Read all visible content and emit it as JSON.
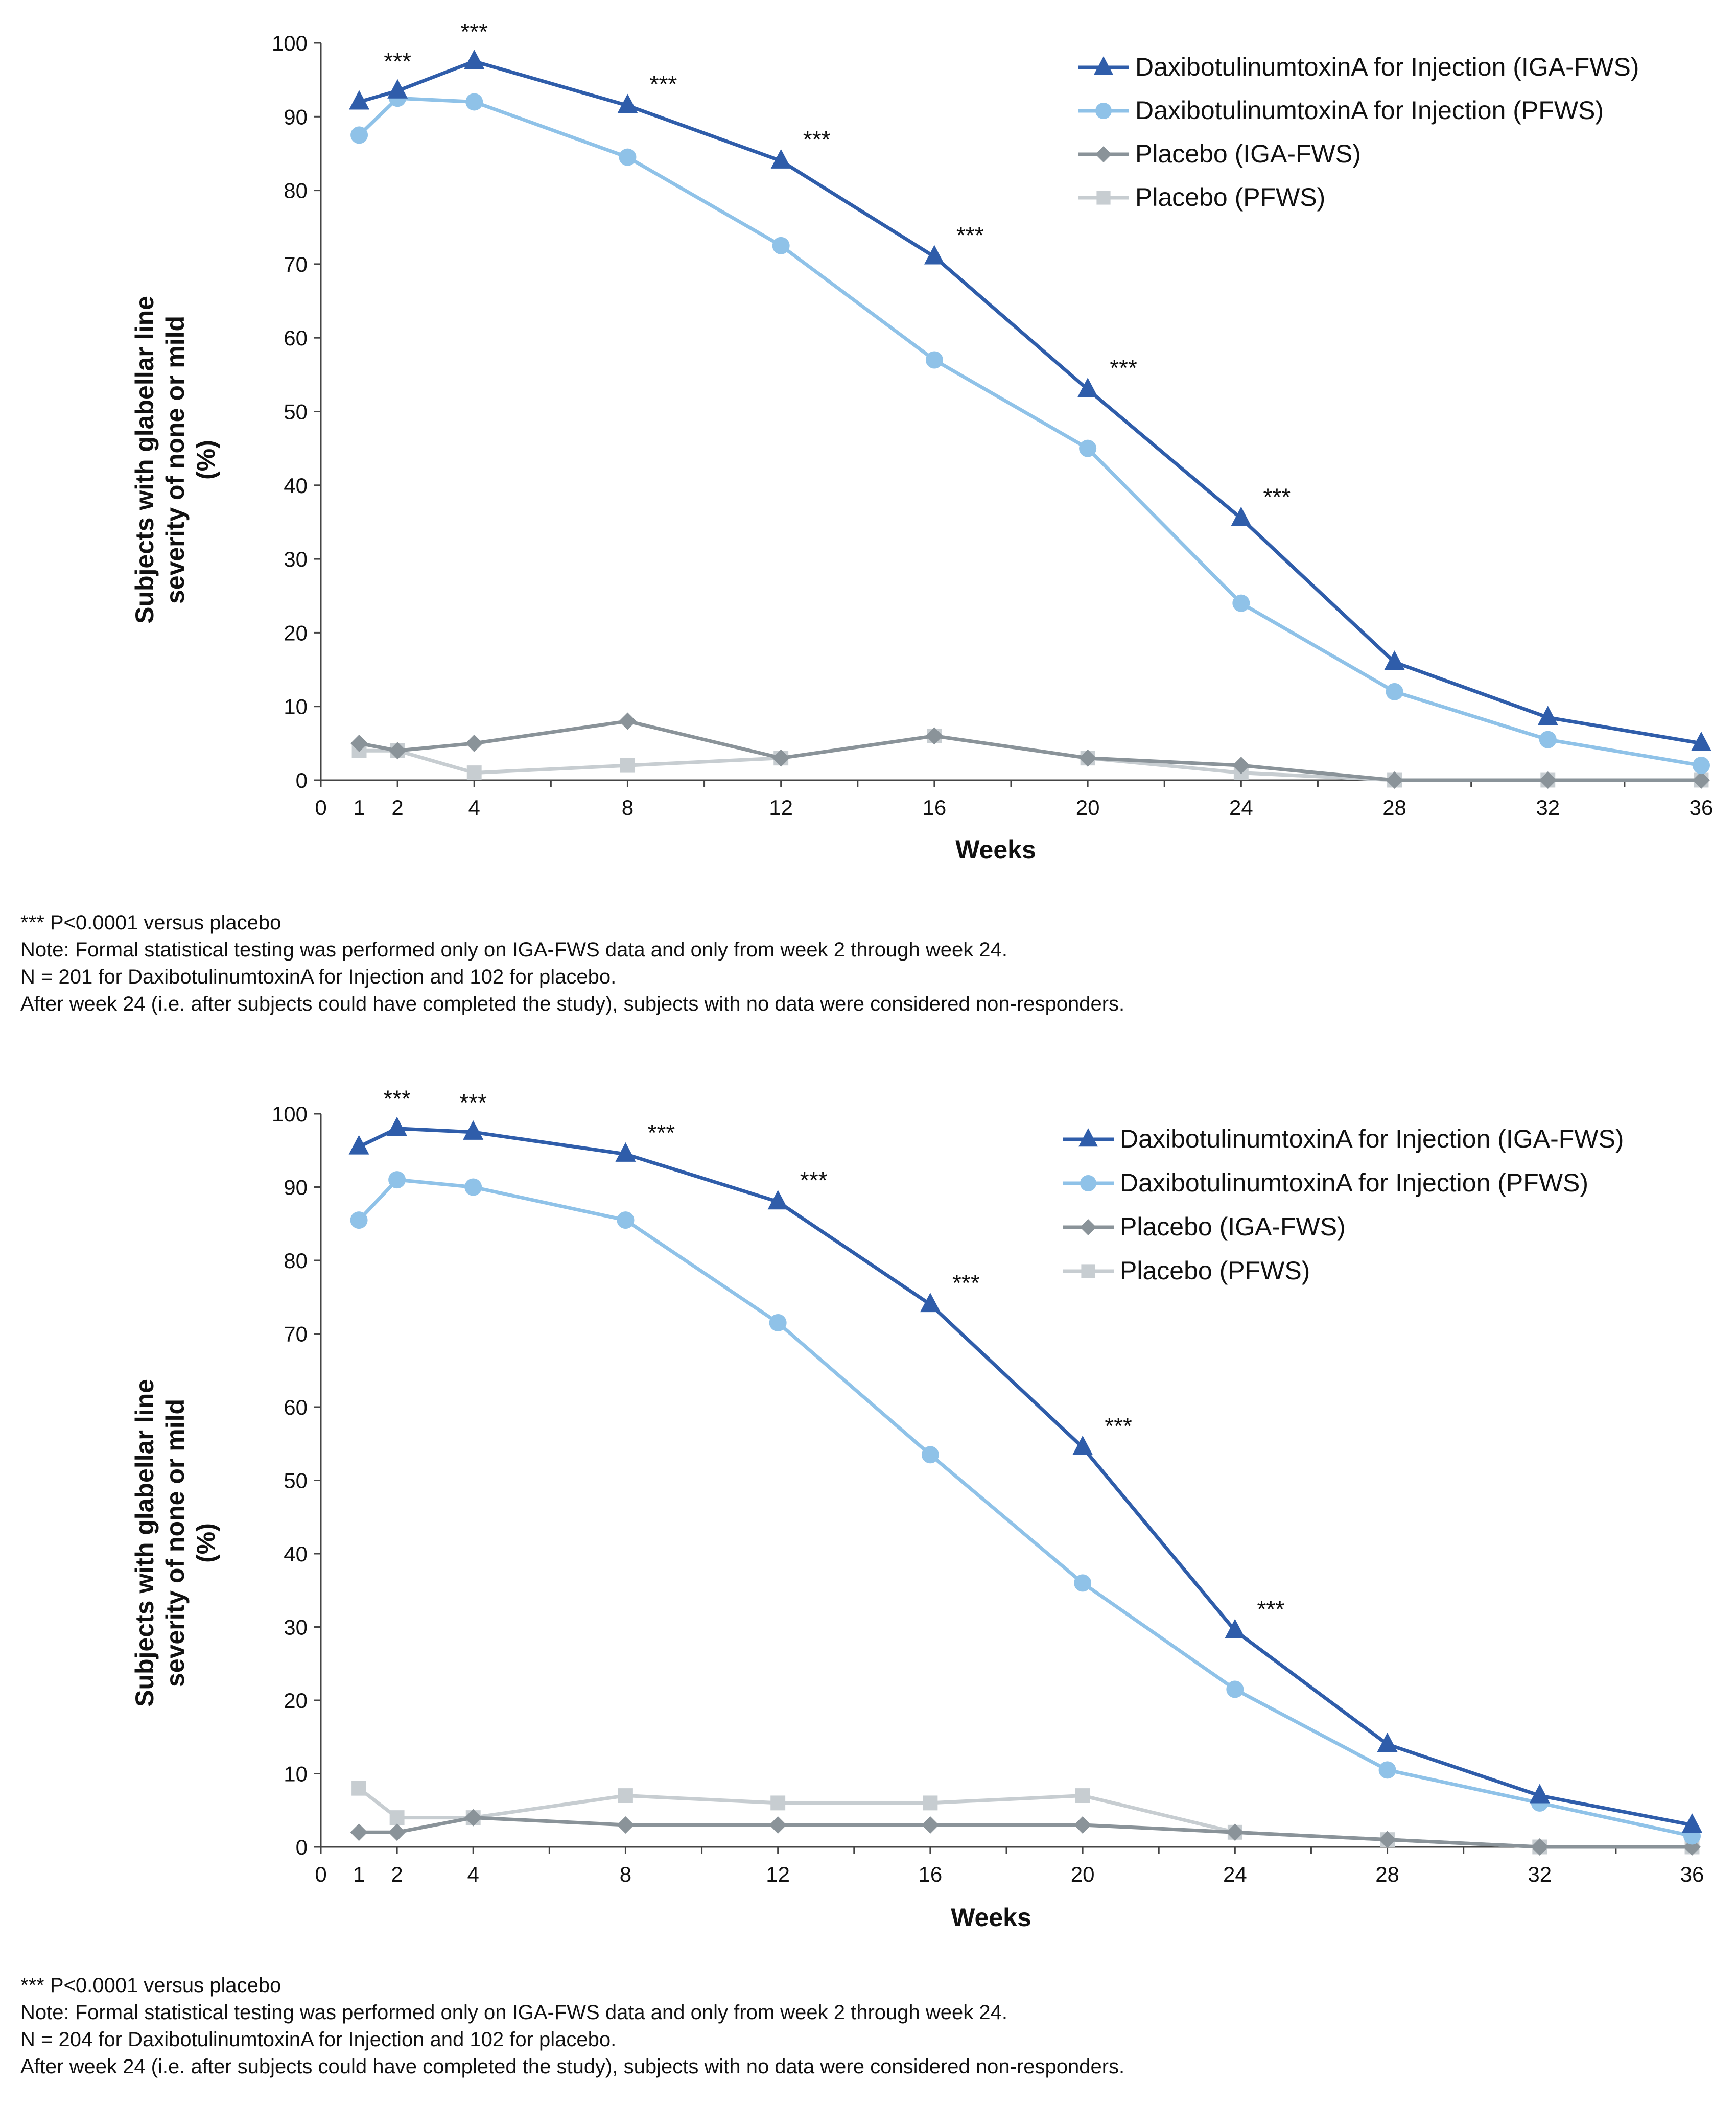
{
  "charts": [
    {
      "chart_data": {
        "type": "line",
        "title": "",
        "xlabel": "Weeks",
        "ylabel_lines": [
          "Subjects with glabellar line",
          "severity of none or mild",
          "(%)"
        ],
        "xlim": [
          0,
          36
        ],
        "ylim": [
          0,
          100
        ],
        "xticks": [
          0,
          1,
          2,
          4,
          8,
          12,
          16,
          20,
          24,
          28,
          32,
          36
        ],
        "xtick_labels": [
          "0",
          "1",
          "2",
          "4",
          "8",
          "12",
          "16",
          "20",
          "24",
          "28",
          "32",
          "36"
        ],
        "yticks": [
          0,
          10,
          20,
          30,
          40,
          50,
          60,
          70,
          80,
          90,
          100
        ],
        "ytick_labels": [
          "0",
          "10",
          "20",
          "30",
          "40",
          "50",
          "60",
          "70",
          "80",
          "90",
          "100"
        ],
        "grid": false,
        "legend_position": "top-right",
        "x": [
          1,
          2,
          4,
          8,
          12,
          16,
          20,
          24,
          28,
          32,
          36
        ],
        "series": [
          {
            "name": "DaxibotulinumtoxinA for Injection (IGA-FWS)",
            "marker": "triangle",
            "color": "#2f5daa",
            "values": [
              92,
              93.5,
              97.5,
              91.5,
              84,
              71,
              53,
              35.5,
              16,
              8.5,
              5
            ]
          },
          {
            "name": "DaxibotulinumtoxinA for Injection (PFWS)",
            "marker": "circle",
            "color": "#8fc2e8",
            "values": [
              87.5,
              92.5,
              92,
              84.5,
              72.5,
              57,
              45,
              24,
              12,
              5.5,
              2
            ]
          },
          {
            "name": "Placebo (IGA-FWS)",
            "marker": "diamond",
            "color": "#8a9399",
            "values": [
              5,
              4,
              5,
              8,
              3,
              6,
              3,
              2,
              0,
              0,
              0
            ]
          },
          {
            "name": "Placebo (PFWS)",
            "marker": "square",
            "color": "#c7cdd1",
            "values": [
              4,
              4,
              1,
              2,
              3,
              6,
              3,
              1,
              0,
              0,
              0
            ]
          }
        ],
        "annotations": [
          {
            "text": "***",
            "x": 2,
            "y": 93.5
          },
          {
            "text": "***",
            "x": 4,
            "y": 97.5
          },
          {
            "text": "***",
            "x": 8,
            "y": 91.5
          },
          {
            "text": "***",
            "x": 12,
            "y": 84
          },
          {
            "text": "***",
            "x": 16,
            "y": 71
          },
          {
            "text": "***",
            "x": 20,
            "y": 53
          },
          {
            "text": "***",
            "x": 24,
            "y": 35.5
          }
        ]
      },
      "notes": [
        "*** P<0.0001 versus placebo",
        "Note: Formal statistical testing was performed only on IGA-FWS data and only from week 2 through week 24.",
        "N = 201 for DaxibotulinumtoxinA for Injection and 102 for placebo.",
        "After week 24 (i.e. after subjects could have completed the study), subjects with no data were considered non-responders."
      ]
    },
    {
      "chart_data": {
        "type": "line",
        "title": "",
        "xlabel": "Weeks",
        "ylabel_lines": [
          "Subjects with glabellar line",
          "severity of none or mild",
          "(%)"
        ],
        "xlim": [
          0,
          36
        ],
        "ylim": [
          0,
          100
        ],
        "xticks": [
          0,
          1,
          2,
          4,
          8,
          12,
          16,
          20,
          24,
          28,
          32,
          36
        ],
        "xtick_labels": [
          "0",
          "1",
          "2",
          "4",
          "8",
          "12",
          "16",
          "20",
          "24",
          "28",
          "32",
          "36"
        ],
        "yticks": [
          0,
          10,
          20,
          30,
          40,
          50,
          60,
          70,
          80,
          90,
          100
        ],
        "ytick_labels": [
          "0",
          "10",
          "20",
          "30",
          "40",
          "50",
          "60",
          "70",
          "80",
          "90",
          "100"
        ],
        "grid": false,
        "legend_position": "top-right",
        "x": [
          1,
          2,
          4,
          8,
          12,
          16,
          20,
          24,
          28,
          32,
          36
        ],
        "series": [
          {
            "name": "DaxibotulinumtoxinA for Injection (IGA-FWS)",
            "marker": "triangle",
            "color": "#2f5daa",
            "values": [
              95.5,
              98,
              97.5,
              94.5,
              88,
              74,
              54.5,
              29.5,
              14,
              7,
              3
            ]
          },
          {
            "name": "DaxibotulinumtoxinA for Injection (PFWS)",
            "marker": "circle",
            "color": "#8fc2e8",
            "values": [
              85.5,
              91,
              90,
              85.5,
              71.5,
              53.5,
              36,
              21.5,
              10.5,
              6,
              1.5
            ]
          },
          {
            "name": "Placebo (IGA-FWS)",
            "marker": "diamond",
            "color": "#8a9399",
            "values": [
              2,
              2,
              4,
              3,
              3,
              3,
              3,
              2,
              1,
              0,
              0
            ]
          },
          {
            "name": "Placebo (PFWS)",
            "marker": "square",
            "color": "#c7cdd1",
            "values": [
              8,
              4,
              4,
              7,
              6,
              6,
              7,
              2,
              1,
              0,
              0
            ]
          }
        ],
        "annotations": [
          {
            "text": "***",
            "x": 2,
            "y": 98
          },
          {
            "text": "***",
            "x": 4,
            "y": 97.5
          },
          {
            "text": "***",
            "x": 8,
            "y": 94.5
          },
          {
            "text": "***",
            "x": 12,
            "y": 88
          },
          {
            "text": "***",
            "x": 16,
            "y": 74
          },
          {
            "text": "***",
            "x": 20,
            "y": 54.5
          },
          {
            "text": "***",
            "x": 24,
            "y": 29.5
          }
        ]
      },
      "notes": [
        "*** P<0.0001 versus placebo",
        "Note: Formal statistical testing was performed only on IGA-FWS data and only from week 2 through week 24.",
        "N = 204 for DaxibotulinumtoxinA for Injection and 102 for placebo.",
        "After week 24 (i.e. after subjects could have completed the study), subjects with no data were considered non-responders."
      ]
    }
  ]
}
